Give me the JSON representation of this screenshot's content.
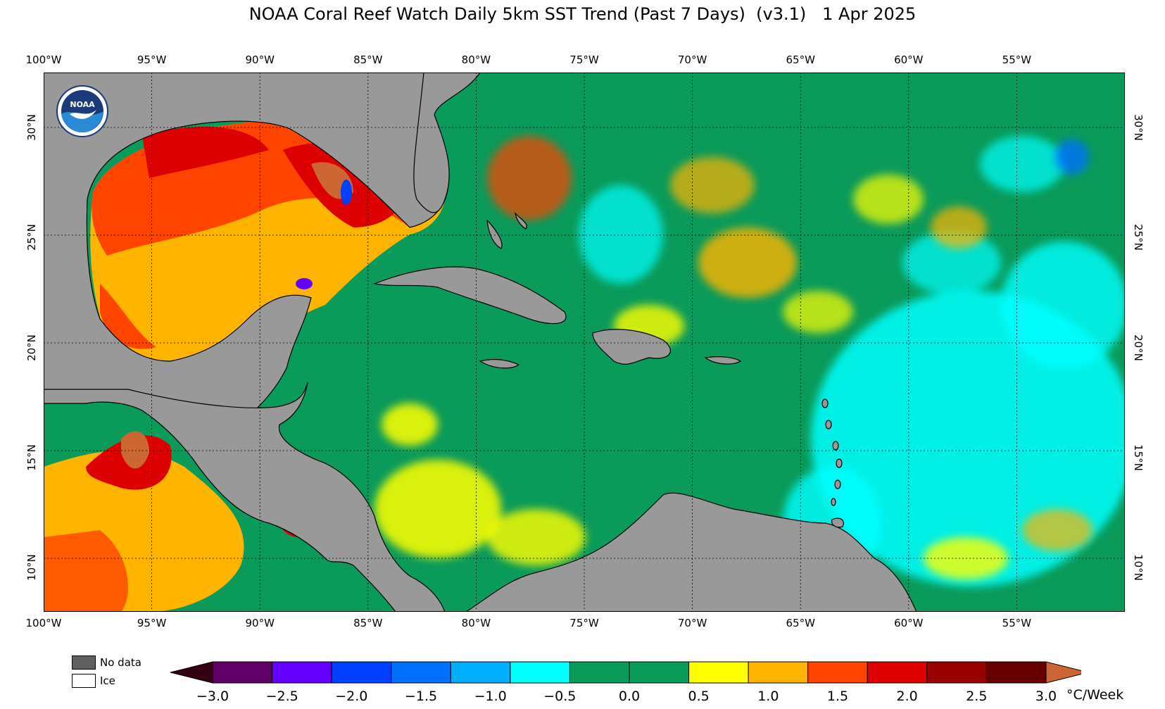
{
  "title": "NOAA Coral Reef Watch Daily 5km SST Trend (Past 7 Days)  (v3.1)   1 Apr 2025",
  "map": {
    "lon_labels": [
      "100°W",
      "95°W",
      "90°W",
      "85°W",
      "80°W",
      "75°W",
      "70°W",
      "65°W",
      "60°W",
      "55°W"
    ],
    "lat_labels": [
      "30°N",
      "25°N",
      "20°N",
      "15°N",
      "10°N"
    ],
    "lon_range": [
      -100,
      -50
    ],
    "lat_range": [
      8,
      32.5
    ],
    "land_color": "#999999",
    "ocean_base_color": "#0a9a5a",
    "logo": "NOAA"
  },
  "legend": {
    "no_data_label": "No data",
    "ice_label": "Ice",
    "no_data_color": "#606060",
    "ice_color": "#ffffff",
    "ticks": [
      "−3.0",
      "−2.5",
      "−2.0",
      "−1.5",
      "−1.0",
      "−0.5",
      "0.0",
      "0.5",
      "1.0",
      "1.5",
      "2.0",
      "2.5",
      "3.0"
    ],
    "units": "°C/Week",
    "colors": [
      "#5e0066",
      "#6400ff",
      "#0040ff",
      "#0070ff",
      "#00b0ff",
      "#00ffff",
      "#0a9a5a",
      "#0a9a5a",
      "#ffff00",
      "#ffb400",
      "#ff4400",
      "#dd0000",
      "#990000",
      "#660000"
    ],
    "low_cap_color": "#330011",
    "high_cap_color": "#cc6633"
  }
}
